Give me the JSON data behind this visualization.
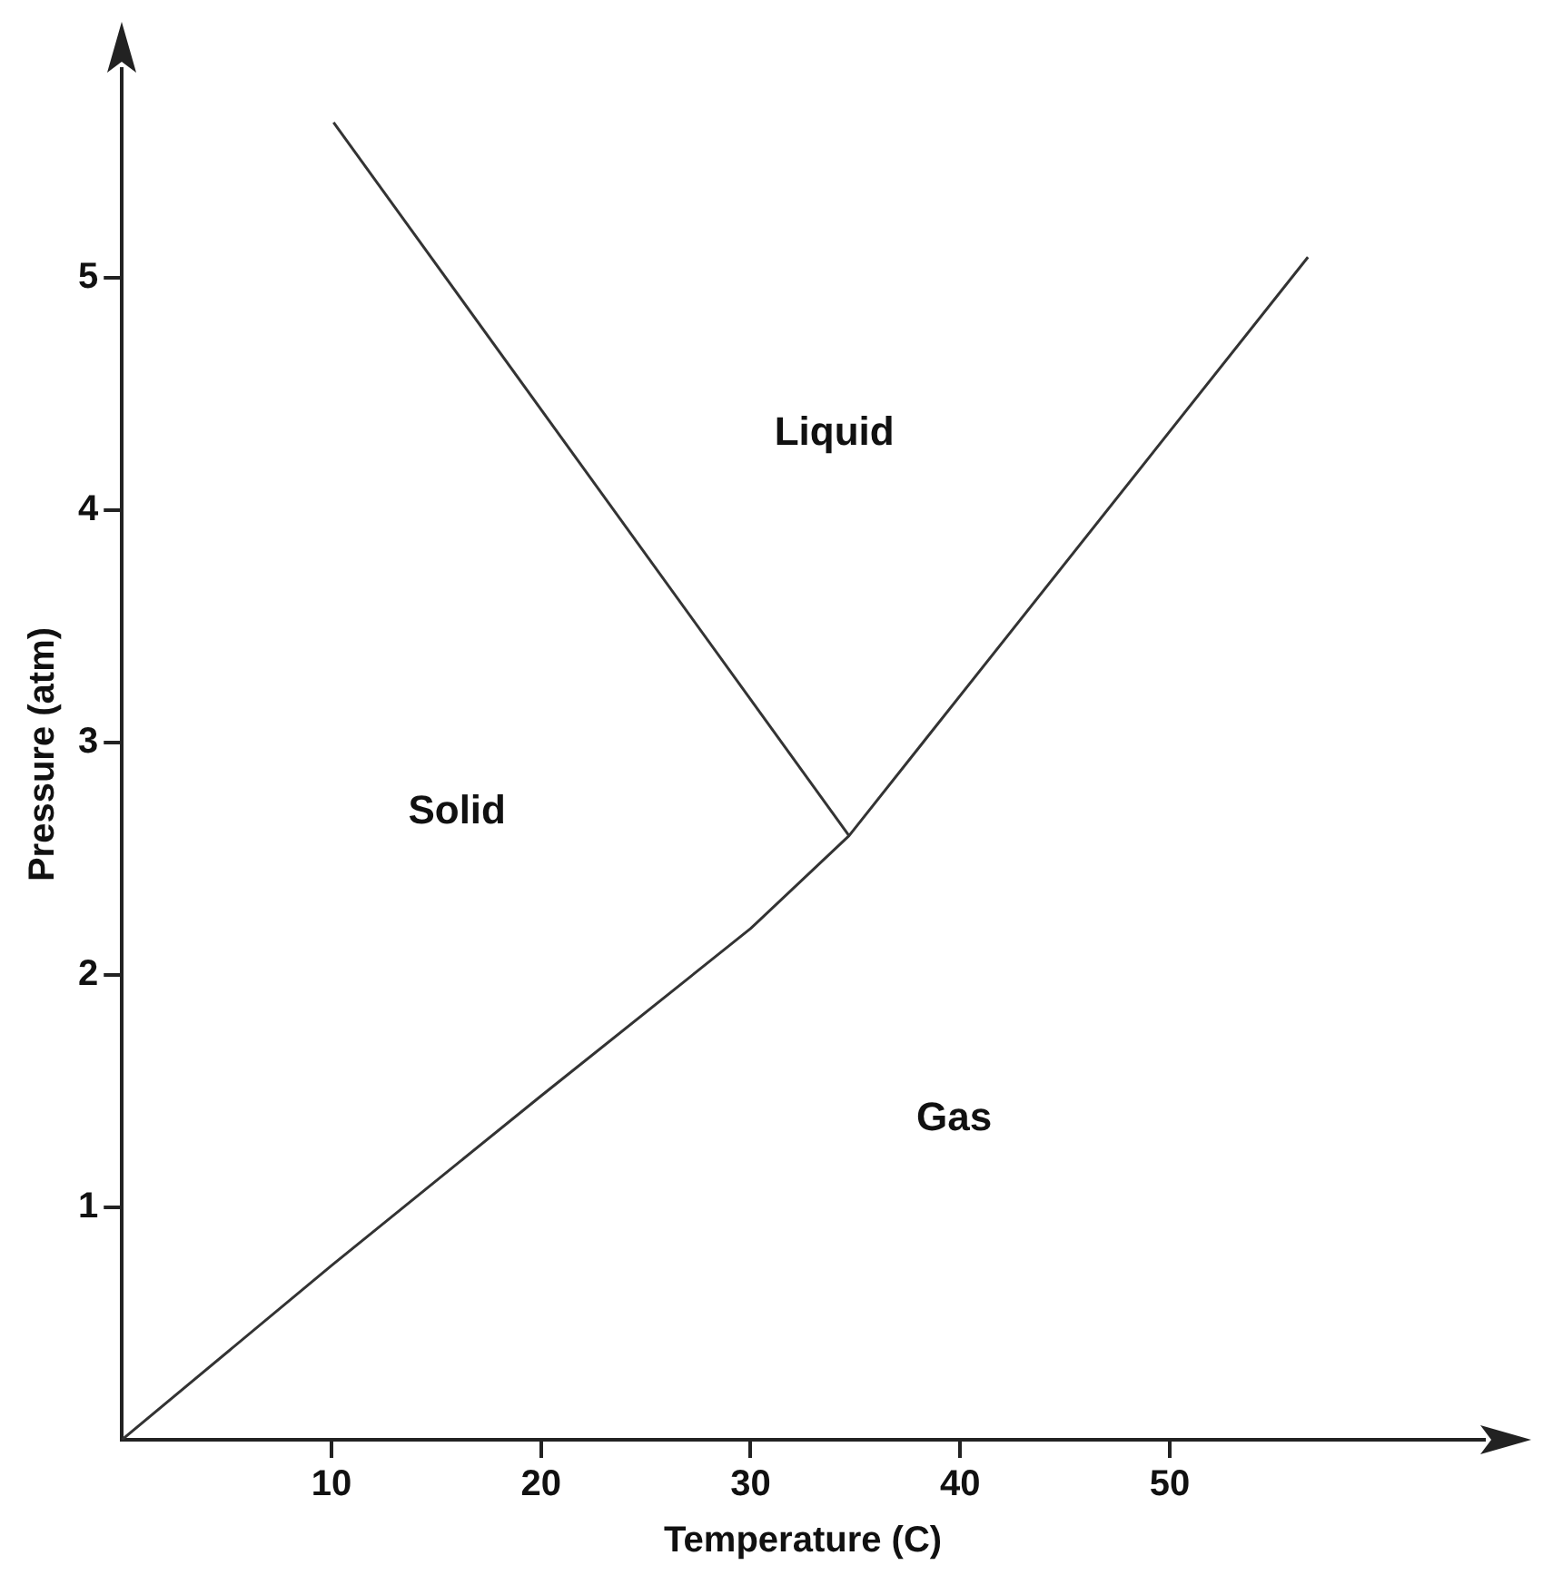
{
  "chart_data": {
    "type": "line",
    "xlabel": "Temperature (C)",
    "ylabel": "Pressure (atm)",
    "xlim": [
      0,
      65
    ],
    "ylim": [
      0,
      5.9
    ],
    "xticks": [
      10,
      20,
      30,
      40,
      50
    ],
    "yticks": [
      1,
      2,
      3,
      4,
      5
    ],
    "series": [
      {
        "color": "#333333",
        "x": [
          0,
          10,
          20,
          30,
          34.7,
          56.6
        ],
        "values": [
          0,
          0.75,
          1.48,
          2.2,
          2.6,
          5.09
        ]
      },
      {
        "color": "#333333",
        "x": [
          10.1,
          34.7
        ],
        "values": [
          5.67,
          2.6
        ]
      }
    ],
    "annotations": [
      "Liquid",
      "Solid",
      "Gas"
    ],
    "grid": false,
    "legend": false,
    "marker": "none",
    "line_style": "solid"
  }
}
